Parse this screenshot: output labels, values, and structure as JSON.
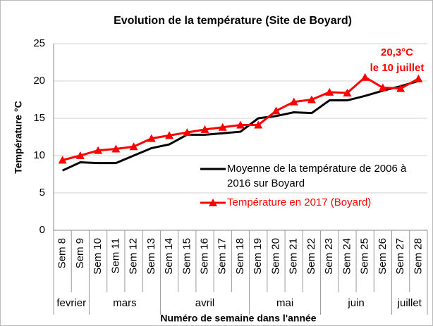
{
  "chart_data": {
    "type": "line",
    "title": "Evolution de la température (Site de Boyard)",
    "y_label": "Température °C",
    "x_label": "Numéro de semaine dans l'année",
    "categories": [
      "Sem 8",
      "Sem 9",
      "Sem 10",
      "Sem 11",
      "Sem 12",
      "Sem 13",
      "Sem 14",
      "Sem 15",
      "Sem 16",
      "Sem 17",
      "Sem 18",
      "Sem 19",
      "Sem 20",
      "Sem 21",
      "Sem 22",
      "Sem 23",
      "Sem 24",
      "Sem 25",
      "Sem 26",
      "Sem 27",
      "Sem 28"
    ],
    "month_groups": [
      "fevrier",
      null,
      "mars",
      null,
      null,
      null,
      "avril",
      null,
      null,
      null,
      null,
      "mai",
      null,
      null,
      null,
      "juin",
      null,
      null,
      null,
      "juillet",
      null
    ],
    "series": [
      {
        "name": "Moyenne de la température de 2006 à 2016 sur Boyard",
        "color": "#000000",
        "marker": "none",
        "values": [
          8.0,
          9.1,
          9.0,
          9.0,
          10.0,
          11.0,
          11.5,
          12.8,
          12.8,
          13.0,
          13.2,
          15.0,
          15.3,
          15.8,
          15.7,
          17.4,
          17.4,
          18.0,
          18.7,
          19.3,
          20.0
        ]
      },
      {
        "name": "Température en 2017 (Boyard)",
        "color": "#ff0000",
        "marker": "triangle",
        "values": [
          9.4,
          10.0,
          10.7,
          10.9,
          11.2,
          12.3,
          12.7,
          13.1,
          13.5,
          13.8,
          14.1,
          14.1,
          16.0,
          17.2,
          17.5,
          18.5,
          18.4,
          20.5,
          19.1,
          19.0,
          20.3
        ]
      }
    ],
    "annotation": [
      "20,3°C",
      "le 10 juillet"
    ],
    "ylim": [
      0,
      25
    ],
    "yticks": [
      0,
      5,
      10,
      15,
      20,
      25
    ],
    "grid": true
  }
}
